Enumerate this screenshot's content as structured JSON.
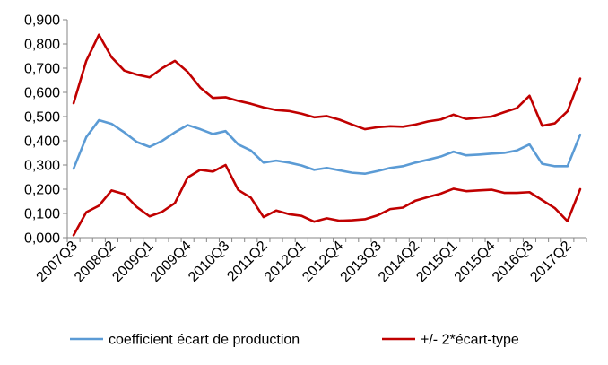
{
  "chart_data": {
    "type": "line",
    "title": "",
    "xlabel": "",
    "ylabel": "",
    "ylim": [
      0,
      0.9
    ],
    "yticks": [
      "0,000",
      "0,100",
      "0,200",
      "0,300",
      "0,400",
      "0,500",
      "0,600",
      "0,700",
      "0,800",
      "0,900"
    ],
    "grid": false,
    "legend_position": "bottom",
    "x": [
      "2007Q3",
      "2007Q4",
      "2008Q1",
      "2008Q2",
      "2008Q3",
      "2008Q4",
      "2009Q1",
      "2009Q2",
      "2009Q3",
      "2009Q4",
      "2010Q1",
      "2010Q2",
      "2010Q3",
      "2010Q4",
      "2011Q1",
      "2011Q2",
      "2011Q3",
      "2011Q4",
      "2012Q1",
      "2012Q2",
      "2012Q3",
      "2012Q4",
      "2013Q1",
      "2013Q2",
      "2013Q3",
      "2013Q4",
      "2014Q1",
      "2014Q2",
      "2014Q3",
      "2014Q4",
      "2015Q1",
      "2015Q2",
      "2015Q3",
      "2015Q4",
      "2016Q1",
      "2016Q2",
      "2016Q3",
      "2016Q4",
      "2017Q1",
      "2017Q2",
      "2017Q3"
    ],
    "xtick_labels": [
      "2007Q3",
      "2008Q2",
      "2009Q1",
      "2009Q4",
      "2010Q3",
      "2011Q2",
      "2012Q1",
      "2012Q4",
      "2013Q3",
      "2014Q2",
      "2015Q1",
      "2015Q4",
      "2016Q3",
      "2017Q2"
    ],
    "series": [
      {
        "name": "coefficient écart de production",
        "color": "#5B9BD5",
        "values": [
          0.285,
          0.415,
          0.485,
          0.47,
          0.435,
          0.395,
          0.375,
          0.4,
          0.435,
          0.465,
          0.448,
          0.428,
          0.44,
          0.385,
          0.36,
          0.31,
          0.318,
          0.31,
          0.298,
          0.28,
          0.288,
          0.278,
          0.268,
          0.264,
          0.275,
          0.288,
          0.295,
          0.31,
          0.322,
          0.335,
          0.355,
          0.34,
          0.343,
          0.347,
          0.35,
          0.36,
          0.385,
          0.305,
          0.295,
          0.295,
          0.425
        ]
      },
      {
        "name": "+/- 2*écart-type",
        "color": "#C00000",
        "values": [
          0.555,
          0.73,
          0.838,
          0.745,
          0.69,
          0.673,
          0.662,
          0.7,
          0.73,
          0.685,
          0.62,
          0.577,
          0.58,
          0.565,
          0.553,
          0.538,
          0.527,
          0.523,
          0.512,
          0.497,
          0.502,
          0.487,
          0.467,
          0.448,
          0.456,
          0.46,
          0.458,
          0.467,
          0.48,
          0.488,
          0.508,
          0.49,
          0.495,
          0.5,
          0.518,
          0.535,
          0.586,
          0.462,
          0.472,
          0.522,
          0.657
        ]
      },
      {
        "name": "",
        "color": "#C00000",
        "values": [
          0.01,
          0.105,
          0.132,
          0.195,
          0.18,
          0.126,
          0.088,
          0.107,
          0.143,
          0.248,
          0.28,
          0.273,
          0.3,
          0.197,
          0.165,
          0.085,
          0.112,
          0.097,
          0.09,
          0.066,
          0.08,
          0.07,
          0.072,
          0.076,
          0.092,
          0.118,
          0.124,
          0.153,
          0.168,
          0.182,
          0.202,
          0.192,
          0.195,
          0.198,
          0.185,
          0.185,
          0.188,
          0.155,
          0.122,
          0.068,
          0.2
        ]
      }
    ]
  }
}
